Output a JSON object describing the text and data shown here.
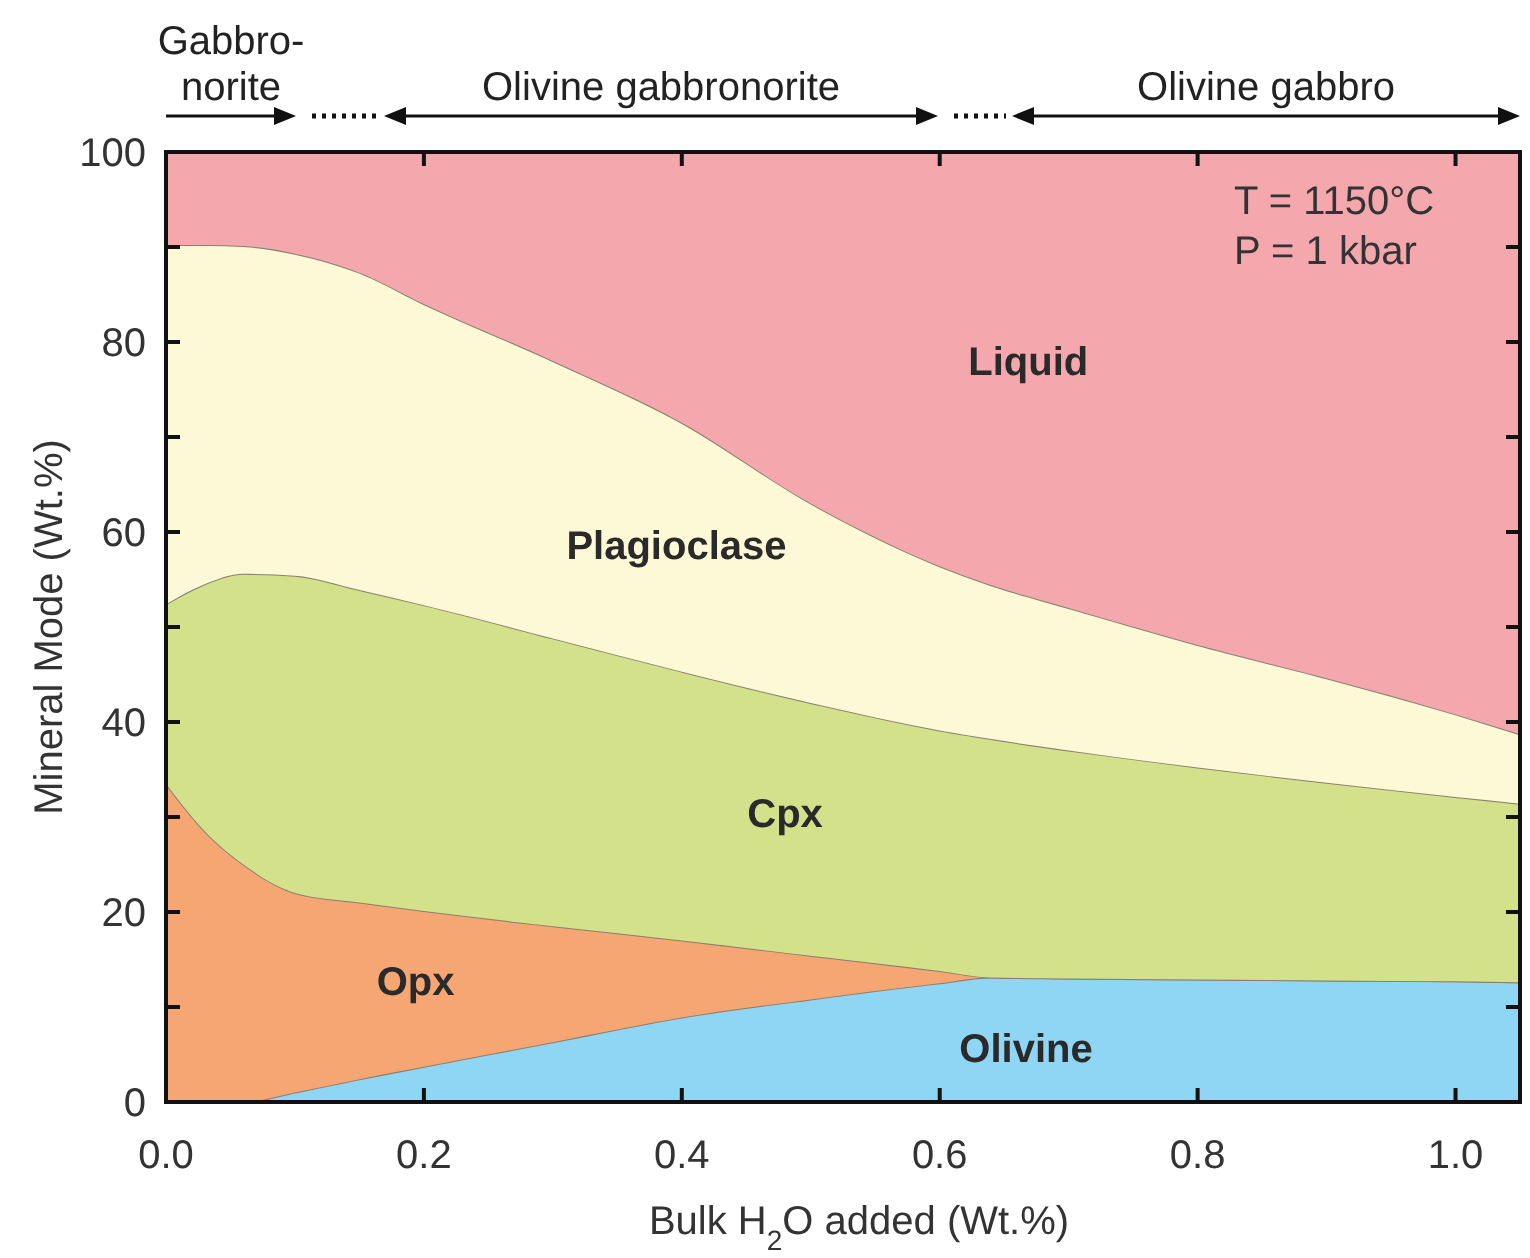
{
  "chart_data": {
    "type": "area",
    "stacked": true,
    "xlabel": "Bulk H$_{2}$O added (Wt.%)",
    "ylabel": "Mineral Mode (Wt.%)",
    "x": [
      0,
      0.03,
      0.06,
      0.1,
      0.15,
      0.2,
      0.3,
      0.4,
      0.5,
      0.6,
      0.64,
      0.7,
      0.8,
      0.9,
      1.0,
      1.05
    ],
    "series": [
      {
        "name": "Olivine",
        "color": "#8fd6f4",
        "values": [
          0,
          0,
          0,
          1.0,
          2.4,
          3.7,
          6.3,
          8.9,
          10.8,
          12.5,
          13.1,
          13.0,
          12.9,
          12.8,
          12.7,
          12.6
        ]
      },
      {
        "name": "Opx",
        "color": "#f6a672",
        "values": [
          33.5,
          28.5,
          25.0,
          21.0,
          18.6,
          16.4,
          12.2,
          8.1,
          4.6,
          1.3,
          0,
          0,
          0,
          0,
          0,
          0
        ]
      },
      {
        "name": "Cpx",
        "color": "#d4e18b",
        "values": [
          18.9,
          26.0,
          30.6,
          33.4,
          32.9,
          32.2,
          30.3,
          28.3,
          26.6,
          25.3,
          25.1,
          24.0,
          22.3,
          20.8,
          19.4,
          18.8
        ]
      },
      {
        "name": "Plagioclase",
        "color": "#fdf9d6",
        "values": [
          37.8,
          35.7,
          34.5,
          33.9,
          33.4,
          31.7,
          29.2,
          26.2,
          21.0,
          17.3,
          16.2,
          15.0,
          12.9,
          11.0,
          8.7,
          7.3
        ]
      },
      {
        "name": "Liquid",
        "color": "#f4a8ad",
        "values": [
          9.8,
          9.8,
          9.9,
          10.7,
          12.7,
          16.0,
          22.0,
          28.5,
          37.0,
          43.6,
          45.6,
          48.0,
          51.9,
          55.4,
          59.2,
          61.3
        ]
      }
    ],
    "xlim": [
      0,
      1.05
    ],
    "xticks": [
      {
        "value": 0,
        "label": "0.0"
      },
      0.2,
      0.4,
      0.6,
      0.8,
      {
        "value": 1,
        "label": "1.0"
      }
    ],
    "ylim": [
      0,
      100
    ],
    "yticks": [
      0,
      {
        "value": 10,
        "label": null
      },
      20,
      {
        "value": 30,
        "label": null
      },
      40,
      {
        "value": 50,
        "label": null
      },
      60,
      {
        "value": 70,
        "label": null
      },
      80,
      {
        "value": 90,
        "label": null
      },
      100
    ],
    "annotations": [
      "Gabbro-\nnorite",
      "Olivine gabbronorite",
      "Olivine gabbro",
      "T = 1150°C",
      "P = 1 kbar"
    ]
  }
}
